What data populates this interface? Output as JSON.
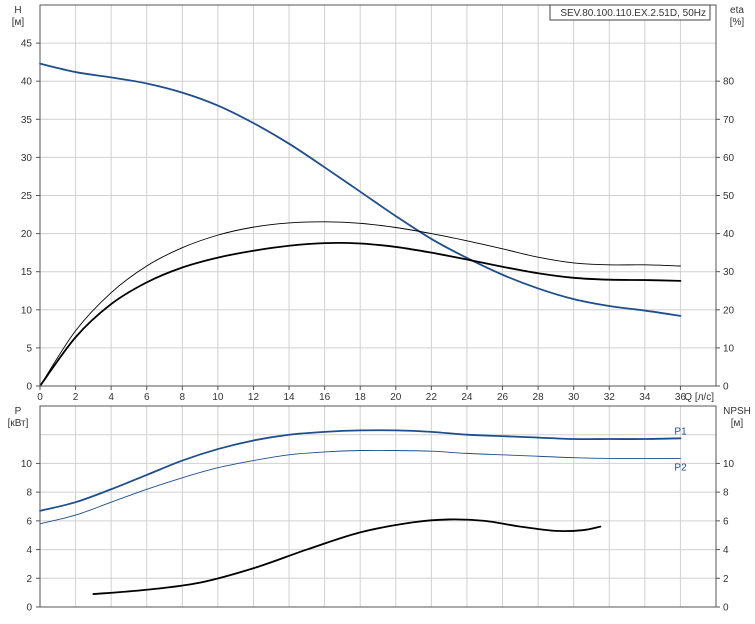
{
  "chart_data": [
    {
      "type": "line",
      "title": "SEV.80.100.110.EX.2.51D, 50Hz",
      "xlabel": "Q [л/с]",
      "ylabel_left": "H",
      "ylabel_left_unit": "[м]",
      "ylabel_right": "eta",
      "ylabel_right_unit": "[%]",
      "xlim": [
        0,
        38
      ],
      "ylim_left": [
        0,
        50
      ],
      "ylim_right": [
        0,
        100
      ],
      "x_ticks": [
        0,
        2,
        4,
        6,
        8,
        10,
        12,
        14,
        16,
        18,
        20,
        22,
        24,
        26,
        28,
        30,
        32,
        34,
        36
      ],
      "y_left_ticks": [
        0,
        5,
        10,
        15,
        20,
        25,
        30,
        35,
        40,
        45
      ],
      "y_right_ticks": [
        0,
        10,
        20,
        30,
        40,
        50,
        60,
        70,
        80
      ],
      "grid": true,
      "series": [
        {
          "axis": "left",
          "color": "#1f4e8c",
          "width": 1.8,
          "x": [
            0,
            2,
            4,
            6,
            8,
            10,
            12,
            14,
            16,
            18,
            20,
            22,
            24,
            26,
            28,
            30,
            32,
            34,
            36
          ],
          "y": [
            42.3,
            41.2,
            40.5,
            39.7,
            38.5,
            36.8,
            34.5,
            31.8,
            28.7,
            25.5,
            22.3,
            19.3,
            16.8,
            14.6,
            12.8,
            11.4,
            10.5,
            9.9,
            9.2
          ]
        },
        {
          "axis": "right",
          "color": "#000000",
          "width": 0.9,
          "x": [
            0,
            2,
            4,
            6,
            8,
            10,
            12,
            14,
            16,
            18,
            20,
            22,
            24,
            26,
            28,
            30,
            32,
            34,
            36
          ],
          "y": [
            0,
            14.5,
            24.5,
            31.5,
            36.3,
            39.6,
            41.7,
            42.8,
            43.1,
            42.7,
            41.6,
            40.0,
            38.1,
            36.0,
            33.8,
            32.3,
            31.8,
            31.8,
            31.5
          ]
        },
        {
          "axis": "right",
          "color": "#000000",
          "width": 1.8,
          "x": [
            0,
            2,
            4,
            6,
            8,
            10,
            12,
            14,
            16,
            18,
            20,
            22,
            24,
            26,
            28,
            30,
            32,
            34,
            36
          ],
          "y": [
            0,
            12.8,
            21.5,
            27.2,
            31.1,
            33.7,
            35.5,
            36.8,
            37.5,
            37.4,
            36.5,
            35.0,
            33.2,
            31.3,
            29.6,
            28.4,
            27.9,
            27.8,
            27.6
          ]
        }
      ]
    },
    {
      "type": "line",
      "ylabel_left": "P",
      "ylabel_left_unit": "[кВт]",
      "ylabel_right": "NPSH",
      "ylabel_right_unit": "[м]",
      "xlim": [
        0,
        38
      ],
      "ylim_left": [
        0,
        14
      ],
      "ylim_right": [
        0,
        14
      ],
      "y_left_ticks": [
        0,
        2,
        4,
        6,
        8,
        10
      ],
      "y_right_ticks": [
        0,
        2,
        4,
        6,
        8,
        10
      ],
      "grid": true,
      "series": [
        {
          "name": "P1",
          "axis": "left",
          "color": "#1f4e8c",
          "width": 1.8,
          "x": [
            0,
            2,
            4,
            6,
            8,
            10,
            12,
            14,
            16,
            18,
            20,
            22,
            24,
            26,
            28,
            30,
            32,
            34,
            36
          ],
          "y": [
            6.7,
            7.3,
            8.2,
            9.2,
            10.2,
            11.0,
            11.6,
            12.0,
            12.2,
            12.3,
            12.3,
            12.2,
            12.0,
            11.9,
            11.8,
            11.7,
            11.7,
            11.7,
            11.75
          ]
        },
        {
          "name": "P2",
          "axis": "left",
          "color": "#1f4e8c",
          "width": 0.9,
          "x": [
            0,
            2,
            4,
            6,
            8,
            10,
            12,
            14,
            16,
            18,
            20,
            22,
            24,
            26,
            28,
            30,
            32,
            34,
            36
          ],
          "y": [
            5.8,
            6.4,
            7.3,
            8.2,
            9.0,
            9.7,
            10.2,
            10.6,
            10.8,
            10.9,
            10.9,
            10.85,
            10.7,
            10.6,
            10.5,
            10.4,
            10.35,
            10.35,
            10.35
          ]
        },
        {
          "axis": "right",
          "color": "#000000",
          "width": 1.8,
          "x": [
            3,
            6,
            9,
            12,
            15,
            18,
            21,
            23,
            25,
            27,
            29,
            30.5,
            31.5
          ],
          "y": [
            0.9,
            1.2,
            1.7,
            2.7,
            4.0,
            5.2,
            5.9,
            6.1,
            6.0,
            5.6,
            5.3,
            5.35,
            5.6
          ]
        }
      ]
    }
  ]
}
